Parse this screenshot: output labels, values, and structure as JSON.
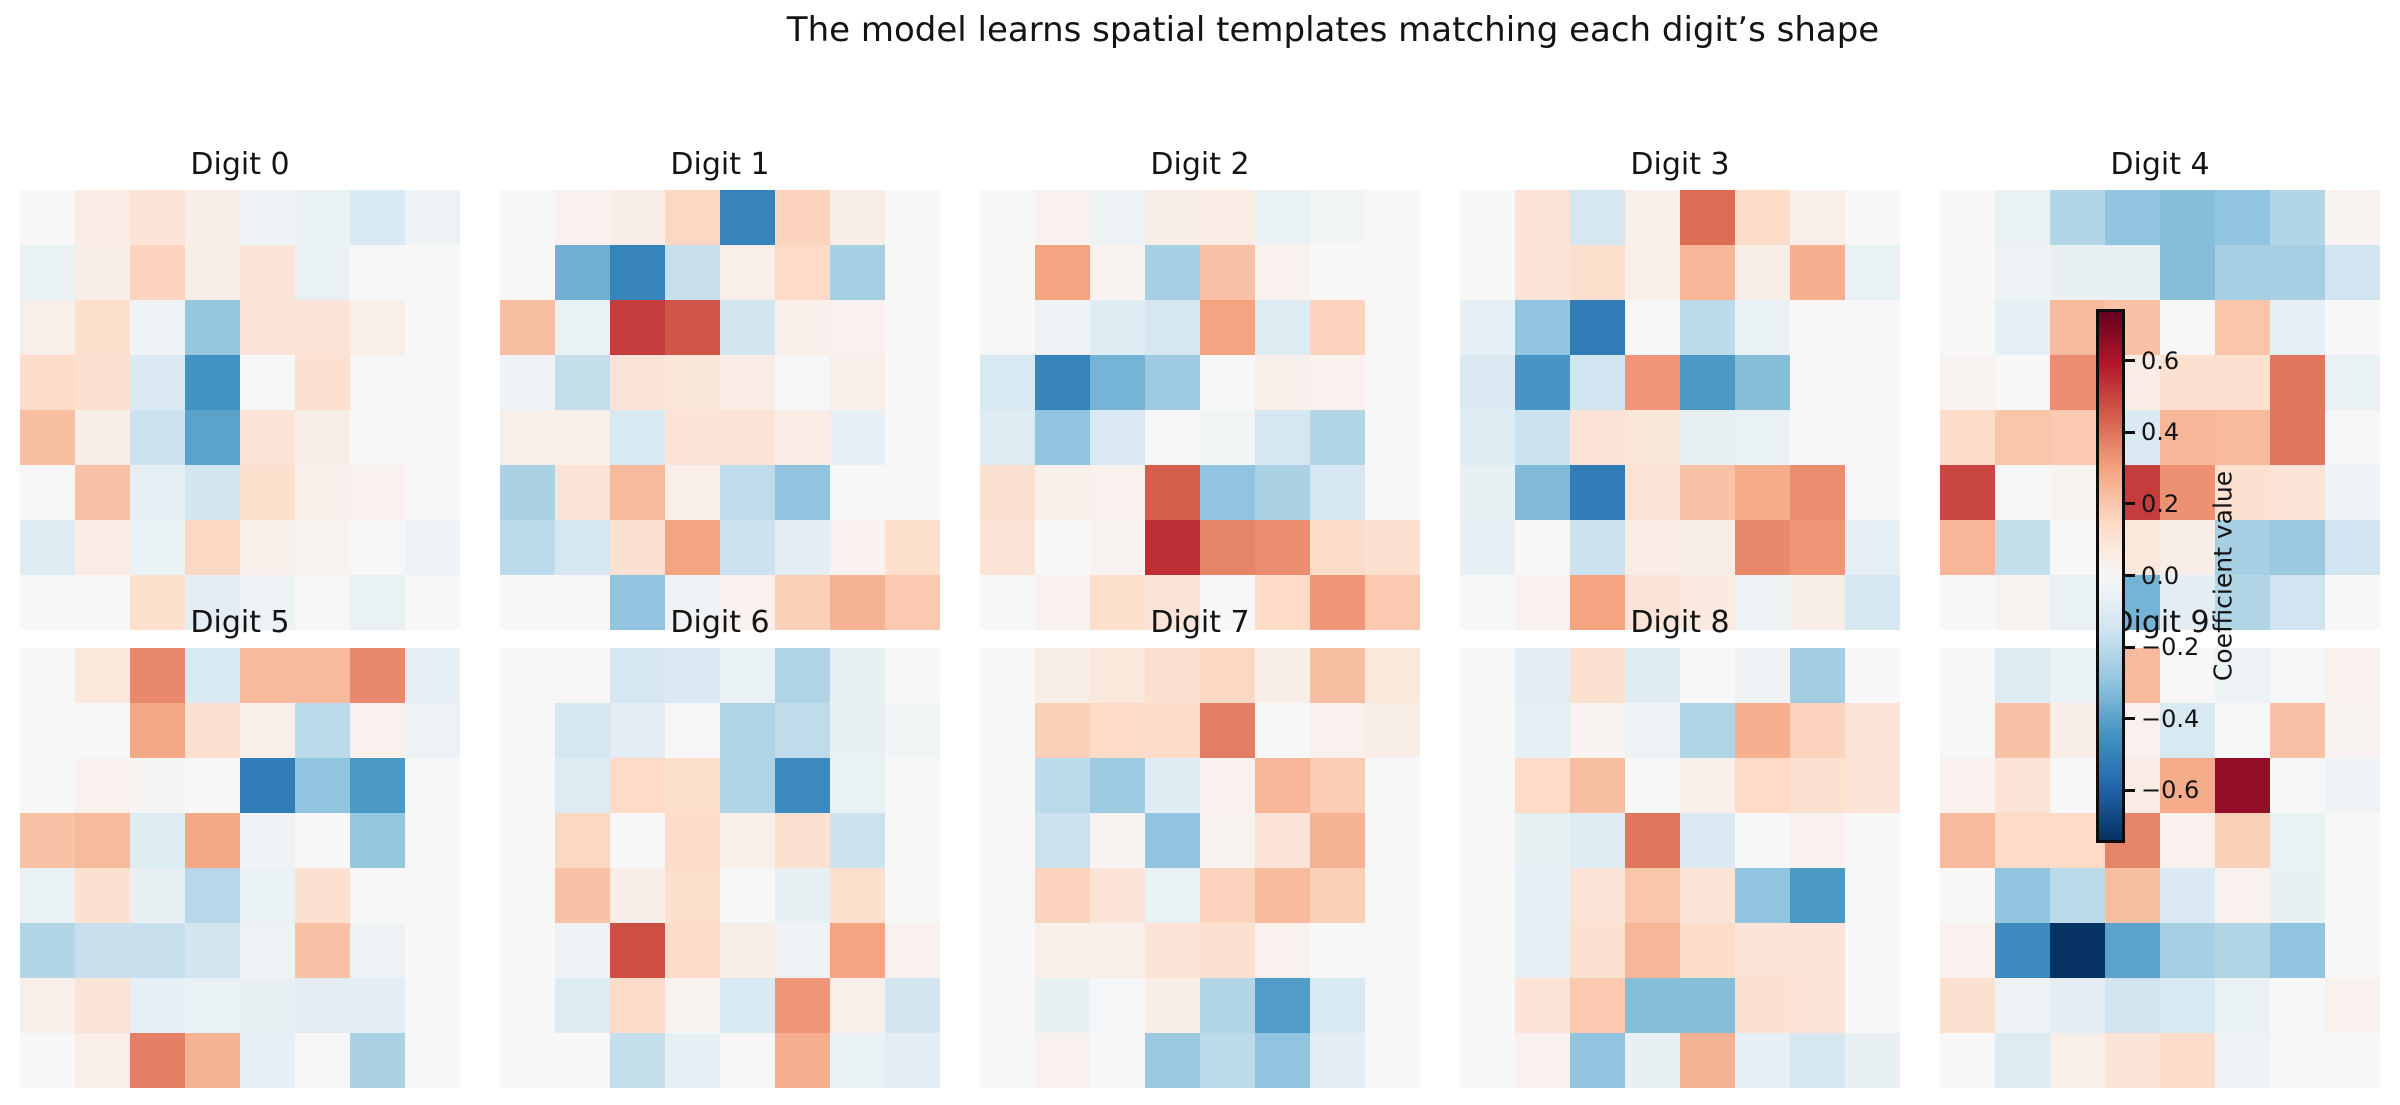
{
  "title": "The model learns spatial templates matching each digit’s shape",
  "colorbar": {
    "label": "Coefficient value",
    "ticks": [
      0.6,
      0.4,
      0.2,
      0.0,
      -0.2,
      -0.4,
      -0.6
    ],
    "tick_labels": [
      "0.6",
      "0.4",
      "0.2",
      "0.0",
      "−0.2",
      "−0.4",
      "−0.6"
    ],
    "vmin": -0.745,
    "vmax": 0.745
  },
  "chart_data": {
    "type": "heatmap",
    "colormap": "RdBu_r",
    "grid_shape": [
      8,
      8
    ],
    "legend_position": "right-overlay",
    "panels": [
      {
        "label": "Digit 0",
        "values": [
          [
            0.0,
            0.06,
            0.1,
            0.05,
            -0.03,
            -0.05,
            -0.12,
            -0.04
          ],
          [
            -0.05,
            0.05,
            0.17,
            0.05,
            0.1,
            -0.05,
            0.0,
            0.0
          ],
          [
            0.04,
            0.13,
            -0.03,
            -0.29,
            0.1,
            0.1,
            0.04,
            0.0
          ],
          [
            0.14,
            0.12,
            -0.11,
            -0.45,
            0.0,
            0.12,
            0.0,
            0.0
          ],
          [
            0.23,
            0.05,
            -0.16,
            -0.4,
            0.1,
            0.05,
            0.0,
            0.0
          ],
          [
            0.0,
            0.22,
            -0.07,
            -0.14,
            0.13,
            0.04,
            0.03,
            0.0
          ],
          [
            -0.1,
            0.06,
            -0.05,
            0.16,
            0.04,
            0.02,
            0.0,
            -0.03
          ],
          [
            0.0,
            0.0,
            0.13,
            -0.08,
            -0.04,
            0.0,
            -0.05,
            0.0
          ]
        ]
      },
      {
        "label": "Digit 1",
        "values": [
          [
            0.0,
            0.03,
            0.05,
            0.16,
            -0.5,
            0.17,
            0.05,
            0.0
          ],
          [
            0.0,
            -0.36,
            -0.5,
            -0.17,
            0.04,
            0.15,
            -0.25,
            0.0
          ],
          [
            0.23,
            -0.05,
            0.52,
            0.47,
            -0.14,
            0.04,
            0.03,
            0.0
          ],
          [
            -0.03,
            -0.18,
            0.1,
            0.09,
            0.06,
            0.0,
            0.04,
            0.0
          ],
          [
            0.04,
            0.04,
            -0.12,
            0.1,
            0.1,
            0.06,
            -0.07,
            0.0
          ],
          [
            -0.24,
            0.1,
            0.24,
            0.04,
            -0.19,
            -0.3,
            0.0,
            0.0
          ],
          [
            -0.2,
            -0.13,
            0.12,
            0.3,
            -0.16,
            -0.08,
            0.03,
            0.13
          ],
          [
            0.0,
            0.0,
            -0.3,
            -0.03,
            0.03,
            0.18,
            0.26,
            0.2
          ]
        ]
      },
      {
        "label": "Digit 2",
        "values": [
          [
            0.0,
            0.03,
            -0.04,
            0.05,
            0.06,
            -0.05,
            -0.02,
            0.0
          ],
          [
            0.0,
            0.3,
            0.02,
            -0.25,
            0.22,
            0.03,
            0.0,
            0.0
          ],
          [
            0.0,
            -0.04,
            -0.09,
            -0.13,
            0.3,
            -0.1,
            0.17,
            0.0
          ],
          [
            -0.12,
            -0.5,
            -0.35,
            -0.27,
            0.0,
            0.04,
            0.03,
            0.0
          ],
          [
            -0.1,
            -0.3,
            -0.11,
            0.0,
            -0.02,
            -0.13,
            -0.22,
            0.0
          ],
          [
            0.12,
            0.04,
            0.03,
            0.45,
            -0.3,
            -0.24,
            -0.13,
            0.0
          ],
          [
            0.1,
            0.0,
            0.02,
            0.55,
            0.37,
            0.35,
            0.14,
            0.12
          ],
          [
            0.0,
            0.03,
            0.13,
            0.1,
            0.0,
            0.15,
            0.33,
            0.2
          ]
        ]
      },
      {
        "label": "Digit 3",
        "values": [
          [
            0.0,
            0.1,
            -0.13,
            0.04,
            0.42,
            0.14,
            0.04,
            0.0
          ],
          [
            0.0,
            0.1,
            0.13,
            0.04,
            0.25,
            0.05,
            0.27,
            -0.05
          ],
          [
            -0.07,
            -0.3,
            -0.52,
            0.0,
            -0.2,
            -0.05,
            0.0,
            0.0
          ],
          [
            -0.11,
            -0.44,
            -0.15,
            0.33,
            -0.43,
            -0.32,
            0.0,
            0.0
          ],
          [
            -0.1,
            -0.16,
            0.1,
            0.09,
            -0.06,
            -0.05,
            0.0,
            0.0
          ],
          [
            -0.06,
            -0.33,
            -0.52,
            0.1,
            0.22,
            0.28,
            0.35,
            0.0
          ],
          [
            -0.07,
            0.0,
            -0.16,
            0.06,
            0.05,
            0.36,
            0.33,
            -0.07
          ],
          [
            0.0,
            0.03,
            0.3,
            0.1,
            0.07,
            -0.04,
            0.05,
            -0.13
          ]
        ]
      },
      {
        "label": "Digit 4",
        "values": [
          [
            0.0,
            -0.05,
            -0.22,
            -0.3,
            -0.32,
            -0.3,
            -0.22,
            0.02
          ],
          [
            0.0,
            -0.04,
            -0.06,
            -0.06,
            -0.32,
            -0.25,
            -0.25,
            -0.15
          ],
          [
            0.0,
            -0.07,
            0.24,
            0.22,
            0.0,
            0.21,
            -0.07,
            0.0
          ],
          [
            0.02,
            0.0,
            0.35,
            0.06,
            0.12,
            0.12,
            0.4,
            -0.05
          ],
          [
            0.14,
            0.21,
            0.2,
            -0.11,
            0.25,
            0.24,
            0.4,
            0.0
          ],
          [
            0.5,
            0.0,
            0.02,
            0.52,
            0.34,
            0.12,
            0.1,
            -0.03
          ],
          [
            0.25,
            -0.18,
            0.0,
            0.08,
            0.05,
            -0.25,
            -0.28,
            -0.15
          ],
          [
            0.0,
            0.02,
            -0.05,
            -0.35,
            -0.08,
            -0.22,
            -0.15,
            0.0
          ]
        ]
      },
      {
        "label": "Digit 5",
        "values": [
          [
            0.0,
            0.08,
            0.36,
            -0.12,
            0.24,
            0.24,
            0.36,
            -0.07
          ],
          [
            0.0,
            0.0,
            0.29,
            0.12,
            0.04,
            -0.2,
            0.03,
            -0.04
          ],
          [
            0.0,
            0.03,
            0.01,
            0.0,
            -0.52,
            -0.3,
            -0.43,
            0.0
          ],
          [
            0.22,
            0.24,
            -0.1,
            0.29,
            -0.03,
            0.0,
            -0.29,
            0.0
          ],
          [
            -0.05,
            0.12,
            -0.06,
            -0.21,
            -0.05,
            0.12,
            0.0,
            0.0
          ],
          [
            -0.22,
            -0.17,
            -0.17,
            -0.14,
            -0.04,
            0.22,
            -0.04,
            0.0
          ],
          [
            0.04,
            0.1,
            -0.07,
            -0.05,
            -0.06,
            -0.08,
            -0.08,
            0.0
          ],
          [
            0.0,
            0.04,
            0.38,
            0.26,
            -0.07,
            0.0,
            -0.24,
            0.0
          ]
        ]
      },
      {
        "label": "Digit 6",
        "values": [
          [
            0.0,
            0.0,
            -0.13,
            -0.11,
            -0.05,
            -0.23,
            -0.06,
            0.0
          ],
          [
            0.0,
            -0.13,
            -0.08,
            0.0,
            -0.23,
            -0.19,
            -0.06,
            -0.02
          ],
          [
            0.0,
            -0.1,
            0.15,
            0.13,
            -0.23,
            -0.48,
            -0.05,
            0.0
          ],
          [
            0.0,
            0.16,
            0.0,
            0.14,
            0.04,
            0.12,
            -0.16,
            0.0
          ],
          [
            0.0,
            0.22,
            0.05,
            0.13,
            0.0,
            -0.06,
            0.13,
            0.0
          ],
          [
            0.0,
            -0.04,
            0.48,
            0.14,
            0.05,
            -0.03,
            0.3,
            0.03
          ],
          [
            0.0,
            -0.1,
            0.14,
            0.02,
            -0.12,
            0.33,
            0.04,
            -0.14
          ],
          [
            0.0,
            0.0,
            -0.18,
            -0.07,
            0.0,
            0.27,
            -0.05,
            -0.08
          ]
        ]
      },
      {
        "label": "Digit 7",
        "values": [
          [
            0.0,
            0.05,
            0.08,
            0.12,
            0.16,
            0.05,
            0.23,
            0.08
          ],
          [
            0.0,
            0.18,
            0.15,
            0.14,
            0.38,
            0.0,
            0.03,
            0.05
          ],
          [
            0.0,
            -0.2,
            -0.27,
            -0.09,
            0.03,
            0.25,
            0.19,
            0.0
          ],
          [
            0.0,
            -0.16,
            0.02,
            -0.3,
            0.02,
            0.1,
            0.26,
            0.0
          ],
          [
            0.0,
            0.17,
            0.1,
            -0.05,
            0.17,
            0.24,
            0.18,
            0.0
          ],
          [
            0.0,
            0.04,
            0.04,
            0.1,
            0.12,
            0.03,
            0.0,
            0.0
          ],
          [
            0.0,
            -0.06,
            -0.01,
            0.05,
            -0.22,
            -0.42,
            -0.12,
            0.0
          ],
          [
            0.0,
            0.03,
            0.0,
            -0.28,
            -0.2,
            -0.3,
            -0.08,
            0.0
          ]
        ]
      },
      {
        "label": "Digit 8",
        "values": [
          [
            0.0,
            -0.08,
            0.12,
            -0.09,
            0.0,
            -0.03,
            -0.26,
            0.0
          ],
          [
            0.0,
            -0.07,
            0.02,
            -0.04,
            -0.23,
            0.27,
            0.17,
            0.1
          ],
          [
            0.0,
            0.15,
            0.23,
            0.0,
            0.04,
            0.15,
            0.12,
            0.1
          ],
          [
            0.0,
            -0.06,
            -0.1,
            0.4,
            -0.11,
            0.0,
            0.03,
            0.0
          ],
          [
            0.0,
            -0.07,
            0.1,
            0.21,
            0.1,
            -0.3,
            -0.43,
            0.0
          ],
          [
            0.0,
            -0.07,
            0.12,
            0.25,
            0.14,
            0.1,
            0.1,
            0.0
          ],
          [
            0.0,
            0.1,
            0.2,
            -0.32,
            -0.32,
            0.12,
            0.1,
            0.0
          ],
          [
            0.0,
            0.03,
            -0.3,
            -0.06,
            0.26,
            -0.07,
            -0.13,
            -0.06
          ]
        ]
      },
      {
        "label": "Digit 9",
        "values": [
          [
            0.0,
            -0.1,
            -0.05,
            0.24,
            0.0,
            -0.04,
            0.0,
            0.03
          ],
          [
            0.0,
            0.22,
            0.05,
            0.03,
            -0.12,
            0.0,
            0.22,
            0.02
          ],
          [
            0.03,
            0.1,
            0.0,
            0.06,
            0.28,
            0.66,
            0.0,
            -0.03
          ],
          [
            0.24,
            0.15,
            0.15,
            0.37,
            0.03,
            0.18,
            -0.05,
            0.0
          ],
          [
            0.0,
            -0.3,
            -0.2,
            0.23,
            -0.11,
            0.03,
            -0.06,
            0.0
          ],
          [
            0.03,
            -0.47,
            -0.74,
            -0.4,
            -0.25,
            -0.22,
            -0.3,
            0.0
          ],
          [
            0.12,
            -0.04,
            -0.08,
            -0.14,
            -0.12,
            -0.05,
            0.0,
            0.03
          ],
          [
            0.0,
            -0.1,
            0.04,
            0.1,
            0.14,
            -0.03,
            0.0,
            0.0
          ]
        ]
      }
    ]
  }
}
